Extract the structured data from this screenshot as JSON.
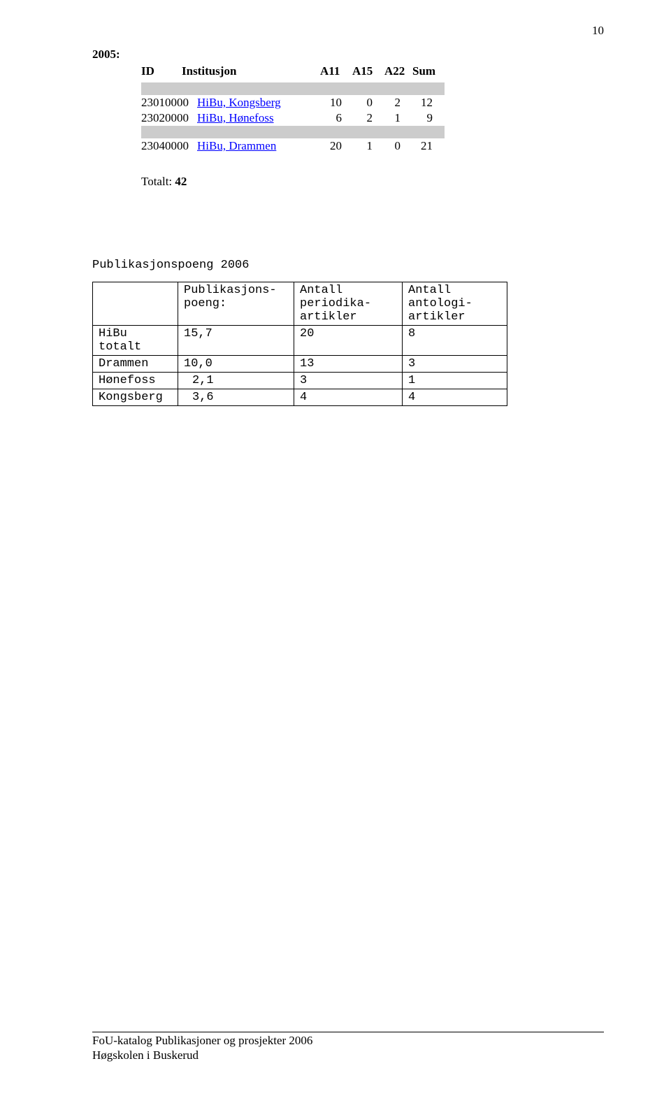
{
  "page_number": "10",
  "year_label": "2005:",
  "table1": {
    "headers": {
      "id": "ID",
      "inst": "Institusjon",
      "a11": "A11",
      "a15": "A15",
      "a22": "A22",
      "sum": "Sum"
    },
    "rows": [
      {
        "id": "23010000",
        "inst": "HiBu, Kongsberg",
        "n1": "10",
        "n2": "0",
        "n3": "2",
        "n4": "12"
      },
      {
        "id": "23020000",
        "inst": "HiBu, Hønefoss",
        "n1": "6",
        "n2": "2",
        "n3": "1",
        "n4": "9"
      },
      {
        "id": "23040000",
        "inst": "HiBu, Drammen",
        "n1": "20",
        "n2": "1",
        "n3": "0",
        "n4": "21"
      }
    ]
  },
  "totalt_label": "Totalt: ",
  "totalt_value": "42",
  "section_title": "Publikasjonspoeng 2006",
  "table2": {
    "headers": {
      "c1": "",
      "c2": "Publikasjons-\npoeng:",
      "c3": "Antall\nperiodika-\nartikler",
      "c4": "Antall\nantologi-\nartikler"
    },
    "rows": [
      {
        "c1": "HiBu\ntotalt",
        "c2": "15,7",
        "c3": "20",
        "c4": "8"
      },
      {
        "c1": "Drammen",
        "c2": "10,0",
        "c3": "13",
        "c4": "3"
      },
      {
        "c1": "Hønefoss",
        "c2": " 2,1",
        "c3": "3",
        "c4": "1"
      },
      {
        "c1": "Kongsberg",
        "c2": " 3,6",
        "c3": "4",
        "c4": "4"
      }
    ]
  },
  "footer_line1": "FoU-katalog Publikasjoner og prosjekter  2006",
  "footer_line2": "Høgskolen i Buskerud"
}
